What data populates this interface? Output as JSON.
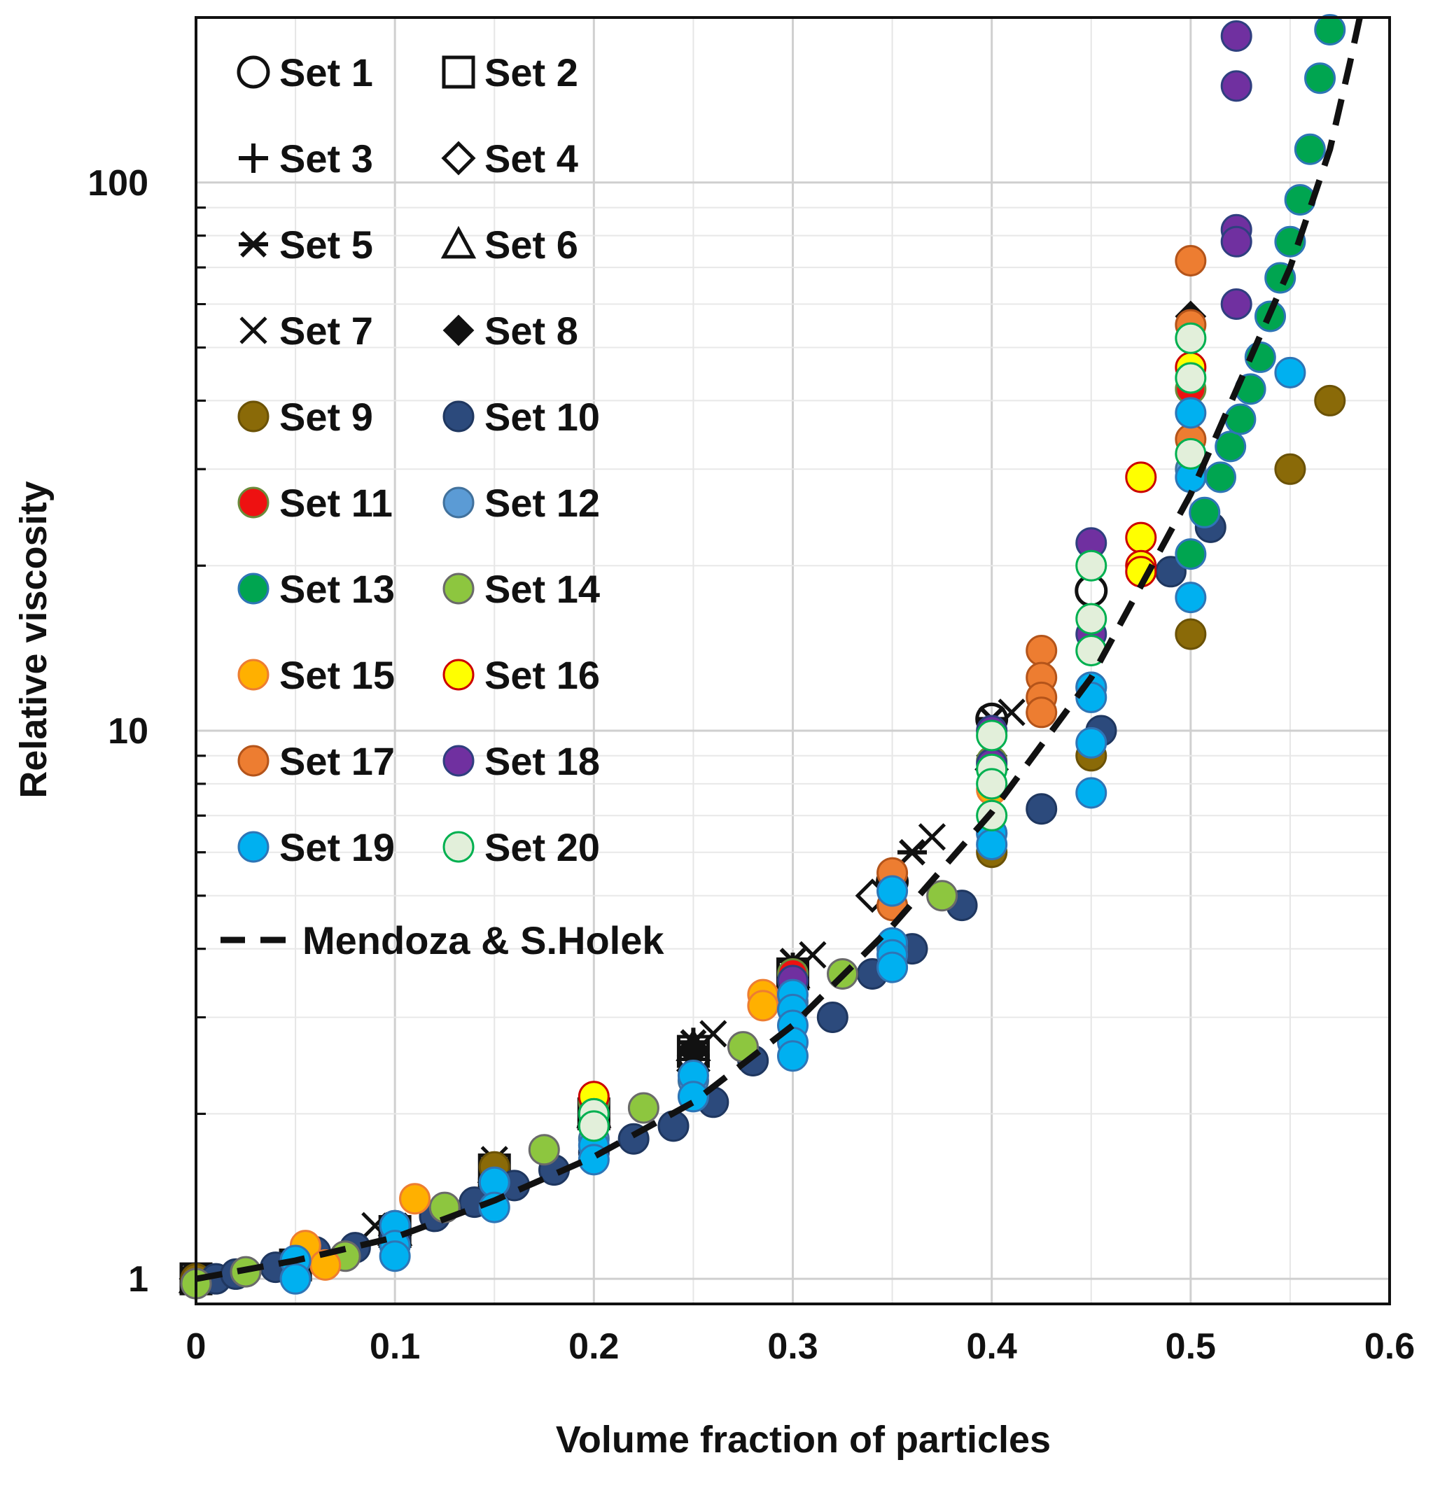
{
  "chart_data": {
    "type": "scatter",
    "title": "",
    "xlabel": "Volume fraction of particles",
    "ylabel": "Relative viscosity",
    "xlim": [
      0,
      0.6
    ],
    "ylim": [
      0.9,
      200
    ],
    "yscale": "log",
    "grid": true,
    "legend_position": "top-left",
    "x_ticks": [
      0,
      0.1,
      0.2,
      0.3,
      0.4,
      0.5,
      0.6
    ],
    "x_tick_labels": [
      "0",
      "0.1",
      "0.2",
      "0.3",
      "0.4",
      "0.5",
      "0.6"
    ],
    "y_ticks": [
      1,
      10,
      100
    ],
    "y_tick_labels": [
      "1",
      "10",
      "100"
    ],
    "legend": [
      {
        "label": "Set 1",
        "marker": "open-circle"
      },
      {
        "label": "Set 2",
        "marker": "open-square"
      },
      {
        "label": "Set 3",
        "marker": "plus"
      },
      {
        "label": "Set 4",
        "marker": "open-diamond"
      },
      {
        "label": "Set 5",
        "marker": "star"
      },
      {
        "label": "Set 6",
        "marker": "open-triangle"
      },
      {
        "label": "Set 7",
        "marker": "x"
      },
      {
        "label": "Set 8",
        "marker": "filled-diamond"
      },
      {
        "label": "Set 9",
        "marker": "circle",
        "fill": "#8a6a08",
        "edge": "#6b5206"
      },
      {
        "label": "Set 10",
        "marker": "circle",
        "fill": "#2c4a7c",
        "edge": "#1f3760"
      },
      {
        "label": "Set 11",
        "marker": "circle",
        "fill": "#ee1111",
        "edge": "#6a8a3a"
      },
      {
        "label": "Set 12",
        "marker": "circle",
        "fill": "#5b9bd5",
        "edge": "#41719c"
      },
      {
        "label": "Set 13",
        "marker": "circle",
        "fill": "#00a550",
        "edge": "#2e75b6"
      },
      {
        "label": "Set 14",
        "marker": "circle",
        "fill": "#8dc63f",
        "edge": "#6a6a6a"
      },
      {
        "label": "Set 15",
        "marker": "circle",
        "fill": "#ffb000",
        "edge": "#ed7d31"
      },
      {
        "label": "Set 16",
        "marker": "circle",
        "fill": "#ffff00",
        "edge": "#cc0000"
      },
      {
        "label": "Set 17",
        "marker": "circle",
        "fill": "#ed7d31",
        "edge": "#b4541a"
      },
      {
        "label": "Set 18",
        "marker": "circle",
        "fill": "#7030a0",
        "edge": "#2f3f7f"
      },
      {
        "label": "Set 19",
        "marker": "circle",
        "fill": "#00b0f0",
        "edge": "#2e75b6"
      },
      {
        "label": "Set 20",
        "marker": "circle",
        "fill": "#e2efda",
        "edge": "#00b050"
      },
      {
        "label": "Mendoza & S.Holek",
        "marker": "dashed-line"
      }
    ],
    "series": [
      {
        "name": "Set 1",
        "points": [
          [
            0,
            1
          ],
          [
            0.05,
            1.05
          ],
          [
            0.1,
            1.22
          ],
          [
            0.15,
            1.52
          ],
          [
            0.2,
            1.95
          ],
          [
            0.25,
            2.55
          ],
          [
            0.3,
            3.5
          ],
          [
            0.35,
            5.3
          ],
          [
            0.4,
            10.5
          ],
          [
            0.45,
            18
          ]
        ]
      },
      {
        "name": "Set 2",
        "points": [
          [
            0,
            1
          ],
          [
            0.05,
            1.06
          ],
          [
            0.1,
            1.22
          ],
          [
            0.15,
            1.58
          ],
          [
            0.2,
            2.0
          ],
          [
            0.25,
            2.6
          ],
          [
            0.3,
            3.6
          ]
        ]
      },
      {
        "name": "Set 3",
        "points": [
          [
            0,
            1
          ],
          [
            0.05,
            1.04
          ],
          [
            0.1,
            1.2
          ],
          [
            0.15,
            1.55
          ],
          [
            0.2,
            2.05
          ],
          [
            0.25,
            2.7
          ],
          [
            0.3,
            3.7
          ]
        ]
      },
      {
        "name": "Set 4",
        "points": [
          [
            0,
            1
          ],
          [
            0.05,
            1.04
          ],
          [
            0.1,
            1.2
          ],
          [
            0.15,
            1.5
          ],
          [
            0.2,
            1.9
          ],
          [
            0.25,
            2.4
          ],
          [
            0.3,
            3.4
          ],
          [
            0.34,
            5.0
          ],
          [
            0.4,
            8.5
          ]
        ]
      },
      {
        "name": "Set 5",
        "points": [
          [
            0,
            1
          ],
          [
            0.1,
            1.25
          ],
          [
            0.15,
            1.6
          ],
          [
            0.2,
            2.05
          ],
          [
            0.25,
            2.7
          ],
          [
            0.3,
            3.8
          ],
          [
            0.36,
            6.0
          ],
          [
            0.4,
            10.5
          ]
        ]
      },
      {
        "name": "Set 6",
        "points": [
          [
            0,
            1
          ],
          [
            0.1,
            1.22
          ],
          [
            0.15,
            1.55
          ],
          [
            0.2,
            2.0
          ],
          [
            0.25,
            2.65
          ],
          [
            0.3,
            3.6
          ]
        ]
      },
      {
        "name": "Set 7",
        "points": [
          [
            0,
            1
          ],
          [
            0.09,
            1.25
          ],
          [
            0.15,
            1.65
          ],
          [
            0.26,
            2.8
          ],
          [
            0.31,
            3.9
          ],
          [
            0.37,
            6.4
          ],
          [
            0.41,
            10.8
          ]
        ]
      },
      {
        "name": "Set 8",
        "points": [
          [
            0,
            1
          ],
          [
            0.05,
            1.04
          ],
          [
            0.1,
            1.2
          ],
          [
            0.15,
            1.55
          ],
          [
            0.2,
            2.0
          ],
          [
            0.25,
            2.6
          ],
          [
            0.3,
            3.5
          ],
          [
            0.35,
            5.2
          ],
          [
            0.4,
            9.0
          ],
          [
            0.5,
            57
          ]
        ]
      },
      {
        "name": "Set 9",
        "points": [
          [
            0,
            1
          ],
          [
            0.15,
            1.6
          ],
          [
            0.4,
            6.0
          ],
          [
            0.45,
            9.0
          ],
          [
            0.5,
            15
          ],
          [
            0.55,
            30
          ],
          [
            0.57,
            40
          ]
        ]
      },
      {
        "name": "Set 10",
        "points": [
          [
            0.01,
            1.0
          ],
          [
            0.02,
            1.02
          ],
          [
            0.04,
            1.05
          ],
          [
            0.06,
            1.12
          ],
          [
            0.08,
            1.14
          ],
          [
            0.1,
            1.18
          ],
          [
            0.12,
            1.3
          ],
          [
            0.14,
            1.38
          ],
          [
            0.16,
            1.48
          ],
          [
            0.18,
            1.58
          ],
          [
            0.2,
            1.7
          ],
          [
            0.22,
            1.8
          ],
          [
            0.24,
            1.9
          ],
          [
            0.26,
            2.1
          ],
          [
            0.28,
            2.5
          ],
          [
            0.32,
            3.0
          ],
          [
            0.34,
            3.6
          ],
          [
            0.36,
            4.0
          ],
          [
            0.385,
            4.8
          ],
          [
            0.425,
            7.2
          ],
          [
            0.455,
            10
          ],
          [
            0.49,
            19.5
          ],
          [
            0.51,
            23.5
          ]
        ]
      },
      {
        "name": "Set 11",
        "points": [
          [
            0.2,
            2.1
          ],
          [
            0.3,
            3.6
          ],
          [
            0.4,
            8.8
          ],
          [
            0.5,
            42
          ]
        ]
      },
      {
        "name": "Set 12",
        "points": [
          [
            0.1,
            1.25
          ],
          [
            0.15,
            1.5
          ],
          [
            0.2,
            1.8
          ],
          [
            0.25,
            2.3
          ],
          [
            0.3,
            3.2
          ],
          [
            0.35,
            4.0
          ],
          [
            0.4,
            6.5
          ],
          [
            0.45,
            12
          ],
          [
            0.5,
            30
          ]
        ]
      },
      {
        "name": "Set 13",
        "points": [
          [
            0.5,
            21
          ],
          [
            0.507,
            25
          ],
          [
            0.515,
            29
          ],
          [
            0.52,
            33
          ],
          [
            0.525,
            37
          ],
          [
            0.53,
            42
          ],
          [
            0.535,
            48
          ],
          [
            0.54,
            57
          ],
          [
            0.545,
            67
          ],
          [
            0.55,
            78
          ],
          [
            0.555,
            93
          ],
          [
            0.56,
            115
          ],
          [
            0.565,
            155
          ],
          [
            0.57,
            190
          ]
        ]
      },
      {
        "name": "Set 14",
        "points": [
          [
            0,
            0.98
          ],
          [
            0.025,
            1.03
          ],
          [
            0.075,
            1.1
          ],
          [
            0.125,
            1.35
          ],
          [
            0.175,
            1.72
          ],
          [
            0.225,
            2.05
          ],
          [
            0.275,
            2.65
          ],
          [
            0.325,
            3.6
          ],
          [
            0.375,
            5.0
          ]
        ]
      },
      {
        "name": "Set 15",
        "points": [
          [
            0.055,
            1.15
          ],
          [
            0.065,
            1.06
          ],
          [
            0.11,
            1.4
          ],
          [
            0.285,
            3.3
          ],
          [
            0.285,
            3.15
          ],
          [
            0.4,
            7.8
          ]
        ]
      },
      {
        "name": "Set 16",
        "points": [
          [
            0.2,
            2.15
          ],
          [
            0.475,
            29
          ],
          [
            0.475,
            22.5
          ],
          [
            0.475,
            20
          ],
          [
            0.475,
            19.5
          ],
          [
            0.5,
            46
          ]
        ]
      },
      {
        "name": "Set 17",
        "points": [
          [
            0.35,
            5.5
          ],
          [
            0.35,
            4.8
          ],
          [
            0.425,
            14
          ],
          [
            0.425,
            12.5
          ],
          [
            0.425,
            11.5
          ],
          [
            0.425,
            10.8
          ],
          [
            0.5,
            72
          ],
          [
            0.5,
            55
          ],
          [
            0.5,
            34
          ]
        ]
      },
      {
        "name": "Set 18",
        "points": [
          [
            0.2,
            2.0
          ],
          [
            0.3,
            3.5
          ],
          [
            0.4,
            10
          ],
          [
            0.4,
            8.7
          ],
          [
            0.45,
            22
          ],
          [
            0.45,
            15
          ],
          [
            0.523,
            185
          ],
          [
            0.523,
            150
          ],
          [
            0.523,
            82
          ],
          [
            0.523,
            78
          ],
          [
            0.523,
            60
          ]
        ]
      },
      {
        "name": "Set 19",
        "points": [
          [
            0.05,
            1.08
          ],
          [
            0.05,
            1.0
          ],
          [
            0.1,
            1.25
          ],
          [
            0.1,
            1.15
          ],
          [
            0.1,
            1.1
          ],
          [
            0.15,
            1.5
          ],
          [
            0.15,
            1.35
          ],
          [
            0.2,
            1.75
          ],
          [
            0.2,
            1.65
          ],
          [
            0.25,
            2.35
          ],
          [
            0.25,
            2.15
          ],
          [
            0.3,
            3.3
          ],
          [
            0.3,
            3.1
          ],
          [
            0.3,
            2.9
          ],
          [
            0.3,
            2.7
          ],
          [
            0.3,
            2.55
          ],
          [
            0.35,
            5.1
          ],
          [
            0.35,
            4.1
          ],
          [
            0.35,
            3.9
          ],
          [
            0.35,
            3.7
          ],
          [
            0.4,
            6.5
          ],
          [
            0.4,
            6.2
          ],
          [
            0.45,
            12
          ],
          [
            0.45,
            11.5
          ],
          [
            0.45,
            9.5
          ],
          [
            0.45,
            7.7
          ],
          [
            0.5,
            38
          ],
          [
            0.5,
            29
          ],
          [
            0.5,
            17.5
          ],
          [
            0.55,
            45
          ]
        ]
      },
      {
        "name": "Set 20",
        "points": [
          [
            0.2,
            2.0
          ],
          [
            0.2,
            1.9
          ],
          [
            0.4,
            9.8
          ],
          [
            0.4,
            8.5
          ],
          [
            0.4,
            8.0
          ],
          [
            0.4,
            7.0
          ],
          [
            0.45,
            20
          ],
          [
            0.45,
            16
          ],
          [
            0.45,
            14
          ],
          [
            0.5,
            52
          ],
          [
            0.5,
            44
          ],
          [
            0.5,
            32
          ]
        ]
      },
      {
        "name": "Mendoza & S.Holek",
        "points": [
          [
            0,
            1
          ],
          [
            0.05,
            1.08
          ],
          [
            0.1,
            1.19
          ],
          [
            0.15,
            1.39
          ],
          [
            0.2,
            1.67
          ],
          [
            0.25,
            2.1
          ],
          [
            0.3,
            2.9
          ],
          [
            0.35,
            4.4
          ],
          [
            0.4,
            7.1
          ],
          [
            0.45,
            12.5
          ],
          [
            0.5,
            27
          ],
          [
            0.55,
            70
          ],
          [
            0.57,
            115
          ],
          [
            0.58,
            165
          ],
          [
            0.585,
            200
          ]
        ]
      }
    ]
  }
}
